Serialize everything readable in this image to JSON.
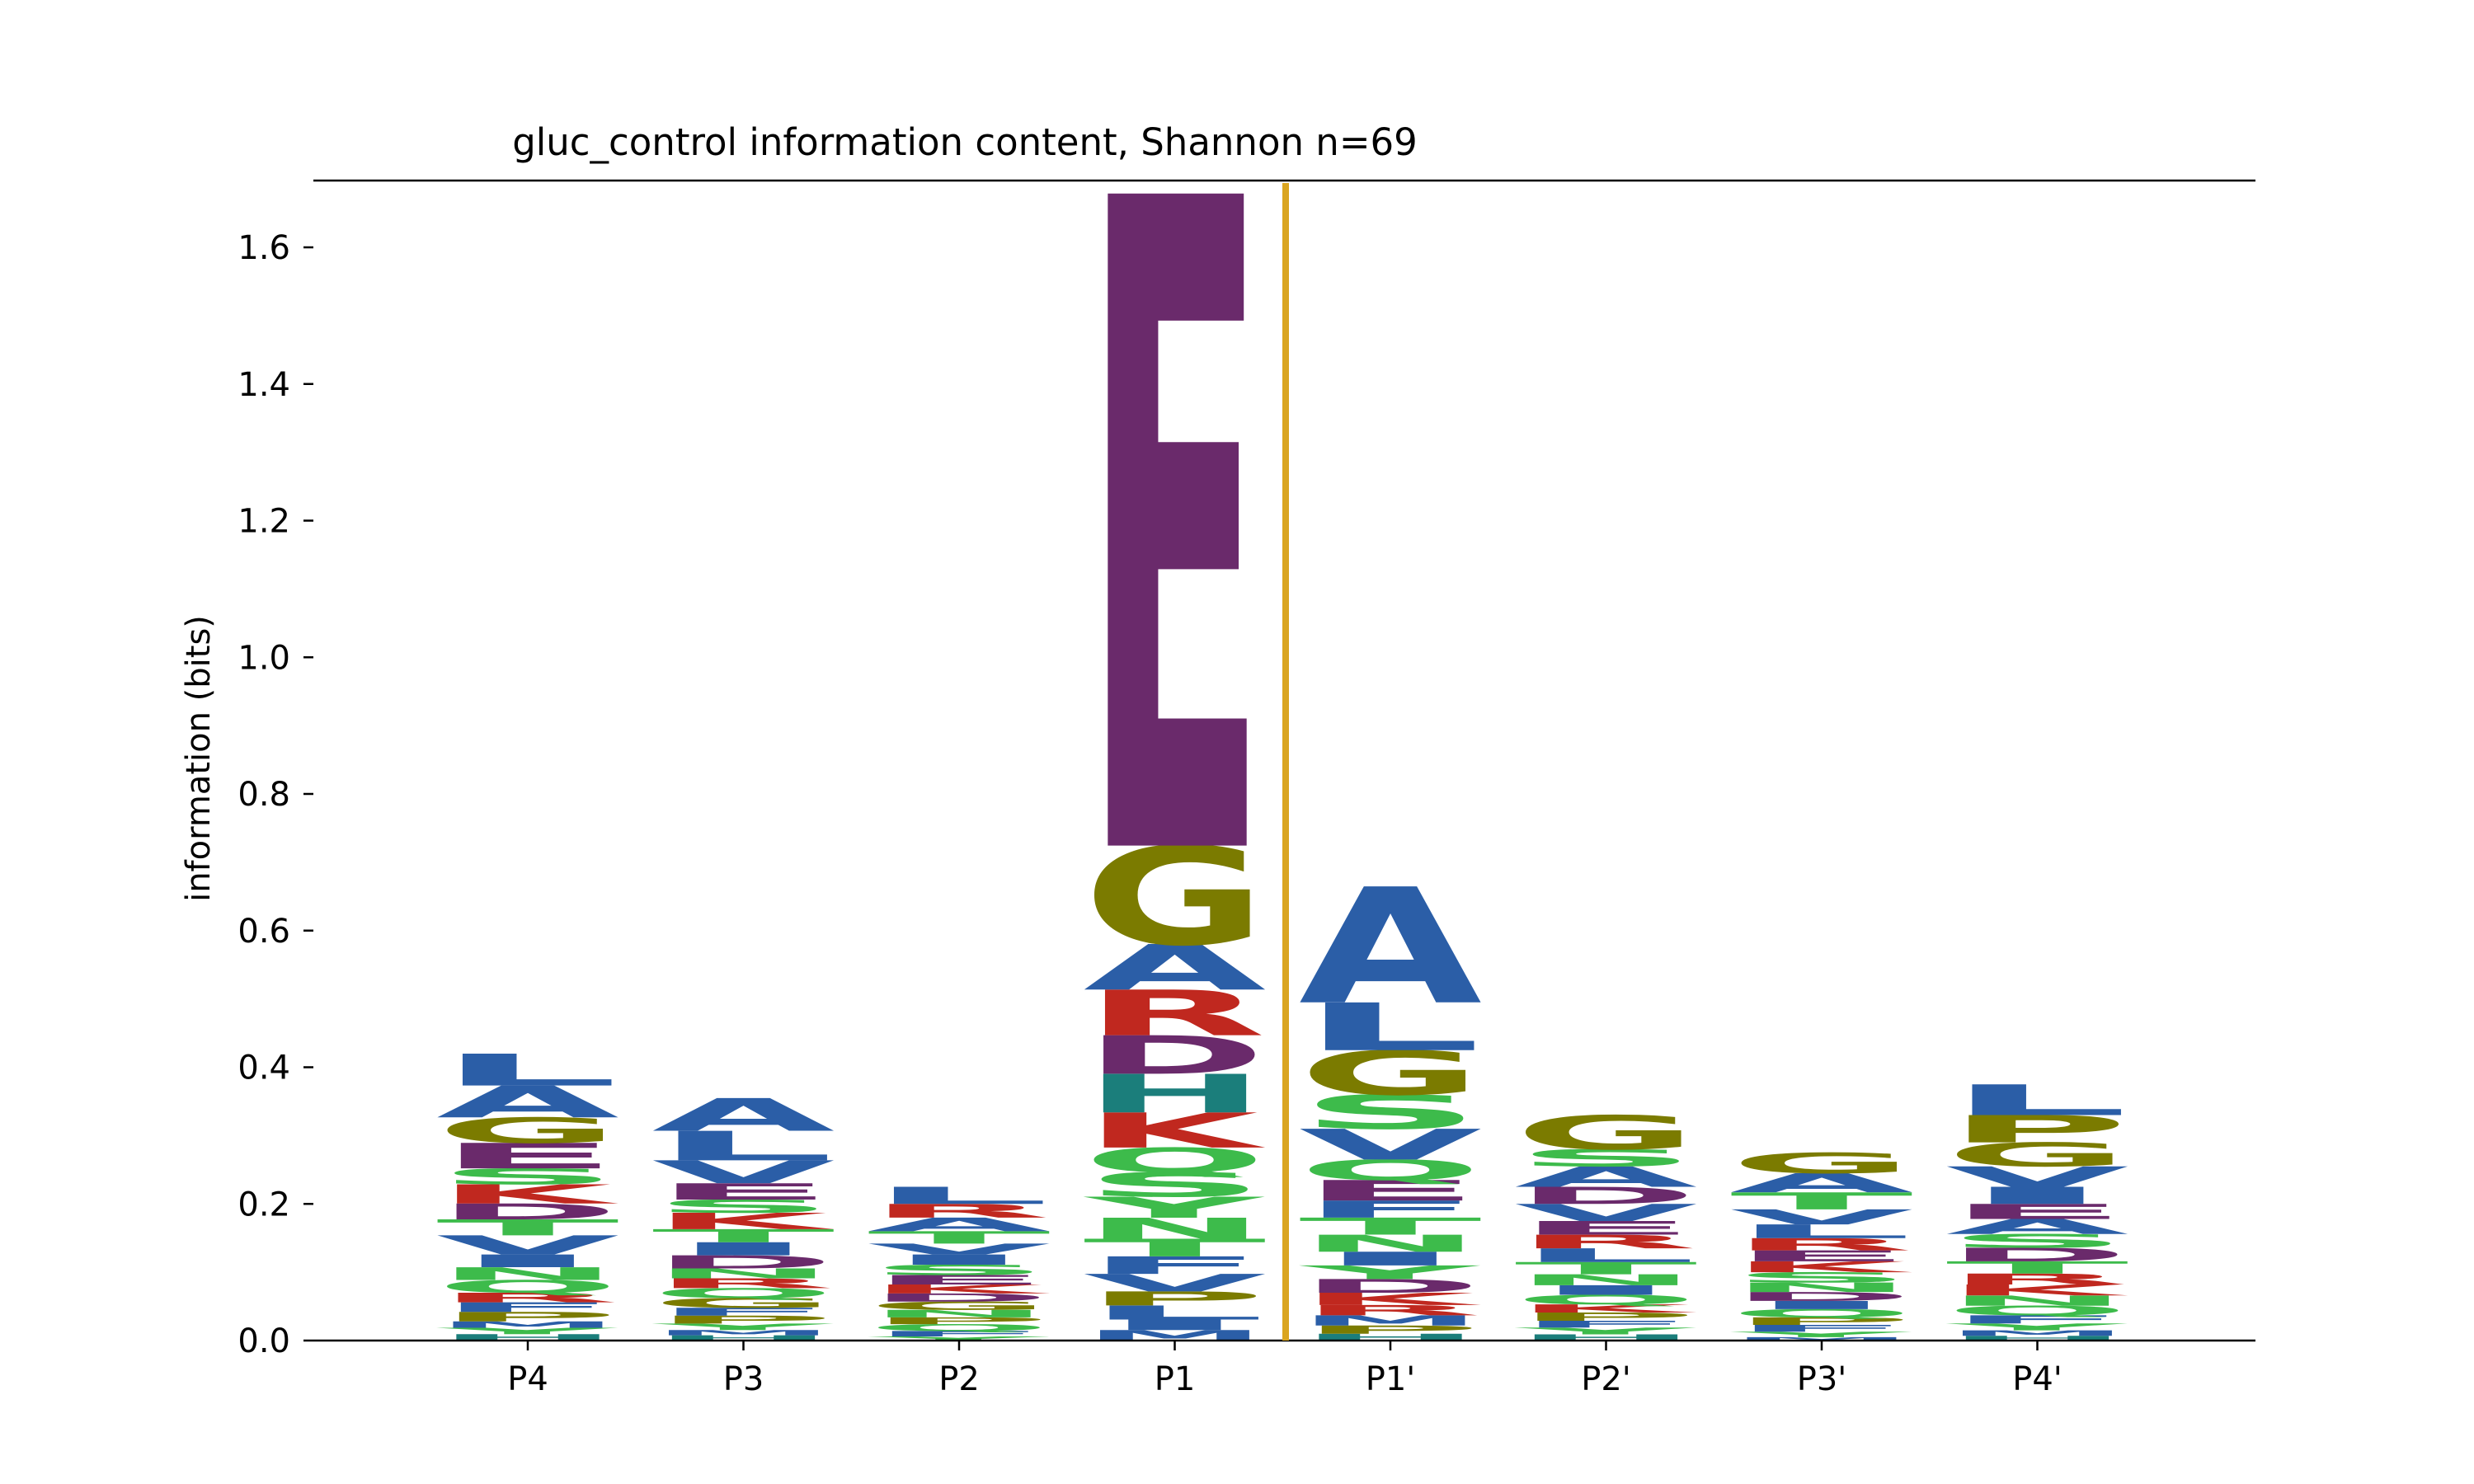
{
  "chart_data": {
    "type": "sequence-logo",
    "title": "gluc_control information content, Shannon n=69",
    "xlabel": "",
    "ylabel": "information (bits)",
    "ylim": [
      0,
      1.7
    ],
    "yticks": [
      0.0,
      0.2,
      0.4,
      0.6,
      0.8,
      1.0,
      1.2,
      1.4,
      1.6
    ],
    "categories": [
      "P4",
      "P3",
      "P2",
      "P1",
      "P1'",
      "P2'",
      "P3'",
      "P4'"
    ],
    "cleavage_marker": {
      "between": [
        "P1",
        "P1'"
      ],
      "color": "#DAA520"
    },
    "colors": {
      "blue": "#2B5EA7",
      "purple": "#6A2A6B",
      "red": "#C0281F",
      "green": "#3DBB4B",
      "olive": "#7B7B00",
      "teal": "#1B7E7B"
    },
    "letter_colors": {
      "A": "#2B5EA7",
      "L": "#2B5EA7",
      "V": "#2B5EA7",
      "I": "#2B5EA7",
      "M": "#2B5EA7",
      "F": "#2B5EA7",
      "W": "#2B5EA7",
      "C": "#2B5EA7",
      "E": "#6A2A6B",
      "D": "#6A2A6B",
      "R": "#C0281F",
      "K": "#C0281F",
      "S": "#3DBB4B",
      "T": "#3DBB4B",
      "N": "#3DBB4B",
      "Q": "#3DBB4B",
      "Y": "#3DBB4B",
      "G": "#7B7B00",
      "P": "#7B7B00",
      "H": "#1B7E7B"
    },
    "stacks": [
      {
        "position": "P4",
        "total": 0.42,
        "letters": [
          {
            "l": "L",
            "h": 0.05
          },
          {
            "l": "A",
            "h": 0.05
          },
          {
            "l": "G",
            "h": 0.04
          },
          {
            "l": "E",
            "h": 0.04
          },
          {
            "l": "S",
            "h": 0.025
          },
          {
            "l": "K",
            "h": 0.03
          },
          {
            "l": "D",
            "h": 0.025
          },
          {
            "l": "T",
            "h": 0.025
          },
          {
            "l": "V",
            "h": 0.03
          },
          {
            "l": "I",
            "h": 0.02
          },
          {
            "l": "N",
            "h": 0.02
          },
          {
            "l": "Q",
            "h": 0.02
          },
          {
            "l": "R",
            "h": 0.015
          },
          {
            "l": "F",
            "h": 0.015
          },
          {
            "l": "P",
            "h": 0.015
          },
          {
            "l": "M",
            "h": 0.01
          },
          {
            "l": "Y",
            "h": 0.01
          },
          {
            "l": "H",
            "h": 0.01
          }
        ]
      },
      {
        "position": "P3",
        "total": 0.355,
        "letters": [
          {
            "l": "A",
            "h": 0.05
          },
          {
            "l": "L",
            "h": 0.045
          },
          {
            "l": "V",
            "h": 0.035
          },
          {
            "l": "E",
            "h": 0.025
          },
          {
            "l": "S",
            "h": 0.02
          },
          {
            "l": "K",
            "h": 0.025
          },
          {
            "l": "T",
            "h": 0.02
          },
          {
            "l": "I",
            "h": 0.02
          },
          {
            "l": "D",
            "h": 0.02
          },
          {
            "l": "N",
            "h": 0.015
          },
          {
            "l": "R",
            "h": 0.015
          },
          {
            "l": "Q",
            "h": 0.015
          },
          {
            "l": "G",
            "h": 0.015
          },
          {
            "l": "F",
            "h": 0.012
          },
          {
            "l": "P",
            "h": 0.012
          },
          {
            "l": "Y",
            "h": 0.01
          },
          {
            "l": "M",
            "h": 0.008
          },
          {
            "l": "H",
            "h": 0.008
          }
        ]
      },
      {
        "position": "P2",
        "total": 0.225,
        "letters": [
          {
            "l": "L",
            "h": 0.025
          },
          {
            "l": "R",
            "h": 0.02
          },
          {
            "l": "A",
            "h": 0.02
          },
          {
            "l": "T",
            "h": 0.018
          },
          {
            "l": "V",
            "h": 0.016
          },
          {
            "l": "I",
            "h": 0.015
          },
          {
            "l": "S",
            "h": 0.015
          },
          {
            "l": "E",
            "h": 0.014
          },
          {
            "l": "K",
            "h": 0.013
          },
          {
            "l": "D",
            "h": 0.012
          },
          {
            "l": "G",
            "h": 0.012
          },
          {
            "l": "N",
            "h": 0.011
          },
          {
            "l": "P",
            "h": 0.01
          },
          {
            "l": "Q",
            "h": 0.01
          },
          {
            "l": "F",
            "h": 0.008
          },
          {
            "l": "Y",
            "h": 0.006
          }
        ]
      },
      {
        "position": "P1",
        "total": 1.68,
        "letters": [
          {
            "l": "E",
            "h": 0.93
          },
          {
            "l": "G",
            "h": 0.14
          },
          {
            "l": "A",
            "h": 0.065
          },
          {
            "l": "R",
            "h": 0.065
          },
          {
            "l": "D",
            "h": 0.055
          },
          {
            "l": "H",
            "h": 0.055
          },
          {
            "l": "K",
            "h": 0.05
          },
          {
            "l": "Q",
            "h": 0.035
          },
          {
            "l": "S",
            "h": 0.035
          },
          {
            "l": "Y",
            "h": 0.03
          },
          {
            "l": "N",
            "h": 0.03
          },
          {
            "l": "T",
            "h": 0.025
          },
          {
            "l": "F",
            "h": 0.025
          },
          {
            "l": "V",
            "h": 0.025
          },
          {
            "l": "P",
            "h": 0.02
          },
          {
            "l": "L",
            "h": 0.02
          },
          {
            "l": "I",
            "h": 0.015
          },
          {
            "l": "M",
            "h": 0.015
          }
        ]
      },
      {
        "position": "P1'",
        "total": 0.665,
        "letters": [
          {
            "l": "A",
            "h": 0.17
          },
          {
            "l": "L",
            "h": 0.07
          },
          {
            "l": "G",
            "h": 0.065
          },
          {
            "l": "S",
            "h": 0.05
          },
          {
            "l": "V",
            "h": 0.045
          },
          {
            "l": "Q",
            "h": 0.03
          },
          {
            "l": "E",
            "h": 0.03
          },
          {
            "l": "F",
            "h": 0.025
          },
          {
            "l": "T",
            "h": 0.025
          },
          {
            "l": "N",
            "h": 0.025
          },
          {
            "l": "I",
            "h": 0.02
          },
          {
            "l": "Y",
            "h": 0.02
          },
          {
            "l": "D",
            "h": 0.02
          },
          {
            "l": "K",
            "h": 0.018
          },
          {
            "l": "R",
            "h": 0.015
          },
          {
            "l": "M",
            "h": 0.015
          },
          {
            "l": "P",
            "h": 0.012
          },
          {
            "l": "H",
            "h": 0.01
          }
        ]
      },
      {
        "position": "P2'",
        "total": 0.33,
        "letters": [
          {
            "l": "G",
            "h": 0.05
          },
          {
            "l": "S",
            "h": 0.025
          },
          {
            "l": "A",
            "h": 0.03
          },
          {
            "l": "D",
            "h": 0.025
          },
          {
            "l": "V",
            "h": 0.025
          },
          {
            "l": "E",
            "h": 0.02
          },
          {
            "l": "R",
            "h": 0.02
          },
          {
            "l": "L",
            "h": 0.02
          },
          {
            "l": "T",
            "h": 0.018
          },
          {
            "l": "N",
            "h": 0.016
          },
          {
            "l": "I",
            "h": 0.014
          },
          {
            "l": "Q",
            "h": 0.014
          },
          {
            "l": "K",
            "h": 0.012
          },
          {
            "l": "P",
            "h": 0.012
          },
          {
            "l": "F",
            "h": 0.01
          },
          {
            "l": "Y",
            "h": 0.01
          },
          {
            "l": "H",
            "h": 0.009
          }
        ]
      },
      {
        "position": "P3'",
        "total": 0.275,
        "letters": [
          {
            "l": "G",
            "h": 0.03
          },
          {
            "l": "A",
            "h": 0.028
          },
          {
            "l": "T",
            "h": 0.025
          },
          {
            "l": "V",
            "h": 0.022
          },
          {
            "l": "L",
            "h": 0.02
          },
          {
            "l": "R",
            "h": 0.018
          },
          {
            "l": "E",
            "h": 0.016
          },
          {
            "l": "K",
            "h": 0.016
          },
          {
            "l": "S",
            "h": 0.015
          },
          {
            "l": "N",
            "h": 0.014
          },
          {
            "l": "D",
            "h": 0.013
          },
          {
            "l": "I",
            "h": 0.012
          },
          {
            "l": "Q",
            "h": 0.012
          },
          {
            "l": "P",
            "h": 0.011
          },
          {
            "l": "F",
            "h": 0.01
          },
          {
            "l": "Y",
            "h": 0.008
          },
          {
            "l": "M",
            "h": 0.005
          }
        ]
      },
      {
        "position": "P4'",
        "total": 0.375,
        "letters": [
          {
            "l": "L",
            "h": 0.045
          },
          {
            "l": "P",
            "h": 0.04
          },
          {
            "l": "G",
            "h": 0.035
          },
          {
            "l": "V",
            "h": 0.03
          },
          {
            "l": "I",
            "h": 0.025
          },
          {
            "l": "E",
            "h": 0.022
          },
          {
            "l": "A",
            "h": 0.022
          },
          {
            "l": "S",
            "h": 0.02
          },
          {
            "l": "D",
            "h": 0.02
          },
          {
            "l": "T",
            "h": 0.018
          },
          {
            "l": "R",
            "h": 0.016
          },
          {
            "l": "K",
            "h": 0.016
          },
          {
            "l": "N",
            "h": 0.015
          },
          {
            "l": "Q",
            "h": 0.014
          },
          {
            "l": "F",
            "h": 0.012
          },
          {
            "l": "Y",
            "h": 0.01
          },
          {
            "l": "M",
            "h": 0.008
          },
          {
            "l": "H",
            "h": 0.007
          }
        ]
      }
    ]
  }
}
